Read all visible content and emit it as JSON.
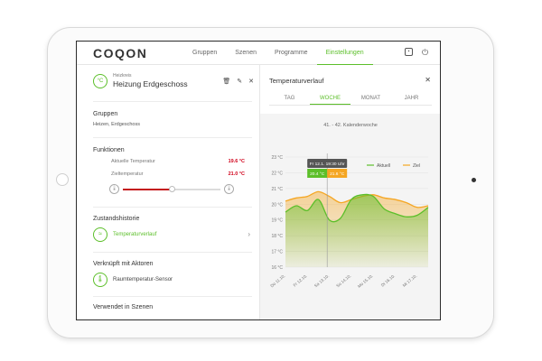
{
  "app": {
    "logo": "COQON"
  },
  "nav": [
    {
      "label": "Gruppen",
      "active": false
    },
    {
      "label": "Szenen",
      "active": false
    },
    {
      "label": "Programme",
      "active": false
    },
    {
      "label": "Einstellungen",
      "active": true
    }
  ],
  "header": {
    "kicker": "Heizkreis",
    "title": "Heizung Erdgeschoss",
    "icon_text": "°C"
  },
  "groups": {
    "title": "Gruppen",
    "text": "Heizen, Erdgeschoss"
  },
  "functions": {
    "title": "Funktionen",
    "current_label": "Aktuelle Temperatur",
    "current_value": "19.6 °C",
    "target_label": "Zieltemperatur",
    "target_value": "21.0 °C",
    "slider_fraction": 0.5
  },
  "history": {
    "title": "Zustandshistorie",
    "link_label": "Temperaturverlauf"
  },
  "actors": {
    "title": "Verknüpft mit Aktoren",
    "link_label": "Raumtemperatur-Sensor"
  },
  "scenes": {
    "title": "Verwendet in Szenen"
  },
  "panel": {
    "title": "Temperaturverlauf"
  },
  "tabs": [
    {
      "label": "TAG",
      "active": false
    },
    {
      "label": "WOCHE",
      "active": true
    },
    {
      "label": "MONAT",
      "active": false
    },
    {
      "label": "JAHR",
      "active": false
    }
  ],
  "colors": {
    "green": "#5cbf2a",
    "orange": "#f5a623",
    "red": "#c4161c"
  },
  "chart_data": {
    "type": "line",
    "title": "41. - 42. Kalenderwoche",
    "ylim": [
      16,
      23
    ],
    "y_ticks": [
      "16 °C",
      "17 °C",
      "18 °C",
      "19 °C",
      "20 °C",
      "21 °C",
      "22 °C",
      "23 °C"
    ],
    "x_ticks": [
      "Do 11.10.",
      "Fr 12.10.",
      "Sa 13.10.",
      "So 14.10.",
      "Mo 15.10.",
      "Di 16.10.",
      "Mi 17.10."
    ],
    "x_domain": [
      0,
      6.5
    ],
    "series": [
      {
        "name": "Aktuell",
        "color": "#5cbf2a",
        "x": [
          0,
          0.5,
          1,
          1.5,
          2,
          2.5,
          3,
          3.5,
          4,
          4.5,
          5,
          5.5,
          6,
          6.5
        ],
        "y": [
          19.5,
          19.9,
          19.6,
          20.3,
          19.0,
          19.1,
          20.3,
          20.6,
          20.5,
          19.7,
          19.4,
          19.2,
          19.3,
          19.8
        ]
      },
      {
        "name": "Ziel",
        "color": "#f5a623",
        "x": [
          0,
          0.5,
          1,
          1.5,
          2,
          2.5,
          3,
          3.5,
          4,
          4.5,
          5,
          5.5,
          6,
          6.5
        ],
        "y": [
          20.2,
          20.4,
          20.5,
          20.8,
          20.5,
          20.1,
          20.3,
          20.5,
          20.6,
          20.4,
          20.3,
          20.1,
          19.8,
          19.9
        ]
      }
    ],
    "tooltip": {
      "x": 1.9,
      "date": "Fr 12.1. 19:30 Uhr",
      "current": "20.4 °C",
      "target": "21.6 °C"
    },
    "grid": true,
    "legend": "top-right"
  }
}
